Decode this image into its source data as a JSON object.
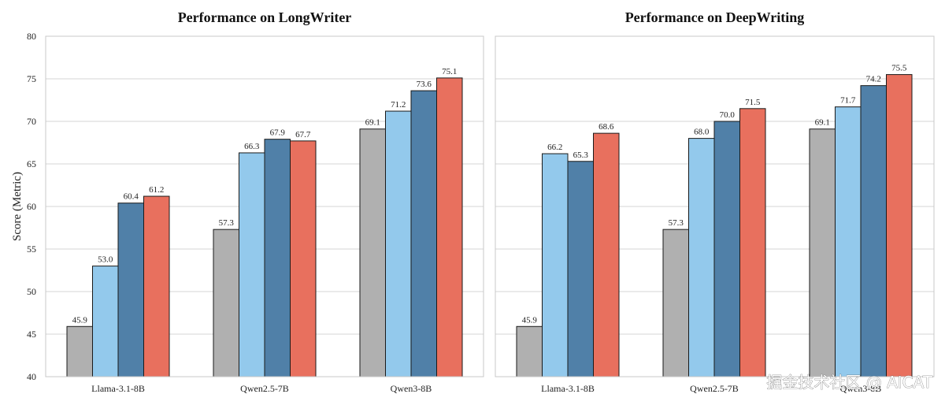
{
  "chart_data": [
    {
      "type": "bar",
      "title": "Performance on LongWriter",
      "ylabel": "Score (Metric)",
      "xlabel": "",
      "ylim": [
        40,
        80
      ],
      "yticks": [
        40,
        45,
        50,
        55,
        60,
        65,
        70,
        75,
        80
      ],
      "grid": true,
      "categories": [
        "Llama-3.1-8B",
        "Qwen2.5-7B",
        "Qwen3-8B"
      ],
      "series": [
        {
          "color": "#b0b0b0",
          "values": [
            45.9,
            57.3,
            69.1
          ]
        },
        {
          "color": "#93c9ec",
          "values": [
            53.0,
            66.3,
            71.2
          ]
        },
        {
          "color": "#5080a8",
          "values": [
            60.4,
            67.9,
            73.6
          ]
        },
        {
          "color": "#e8705e",
          "values": [
            61.2,
            67.7,
            75.1
          ]
        }
      ]
    },
    {
      "type": "bar",
      "title": "Performance on DeepWriting",
      "ylabel": "",
      "xlabel": "",
      "ylim": [
        40,
        80
      ],
      "yticks": [
        40,
        45,
        50,
        55,
        60,
        65,
        70,
        75,
        80
      ],
      "grid": true,
      "categories": [
        "Llama-3.1-8B",
        "Qwen2.5-7B",
        "Qwen3-8B"
      ],
      "series": [
        {
          "color": "#b0b0b0",
          "values": [
            45.9,
            57.3,
            69.1
          ]
        },
        {
          "color": "#93c9ec",
          "values": [
            66.2,
            68.0,
            71.7
          ]
        },
        {
          "color": "#5080a8",
          "values": [
            65.3,
            70.0,
            74.2
          ]
        },
        {
          "color": "#e8705e",
          "values": [
            68.6,
            71.5,
            75.5
          ]
        }
      ]
    }
  ],
  "watermark": "掘金技术社区 @ AICAT"
}
